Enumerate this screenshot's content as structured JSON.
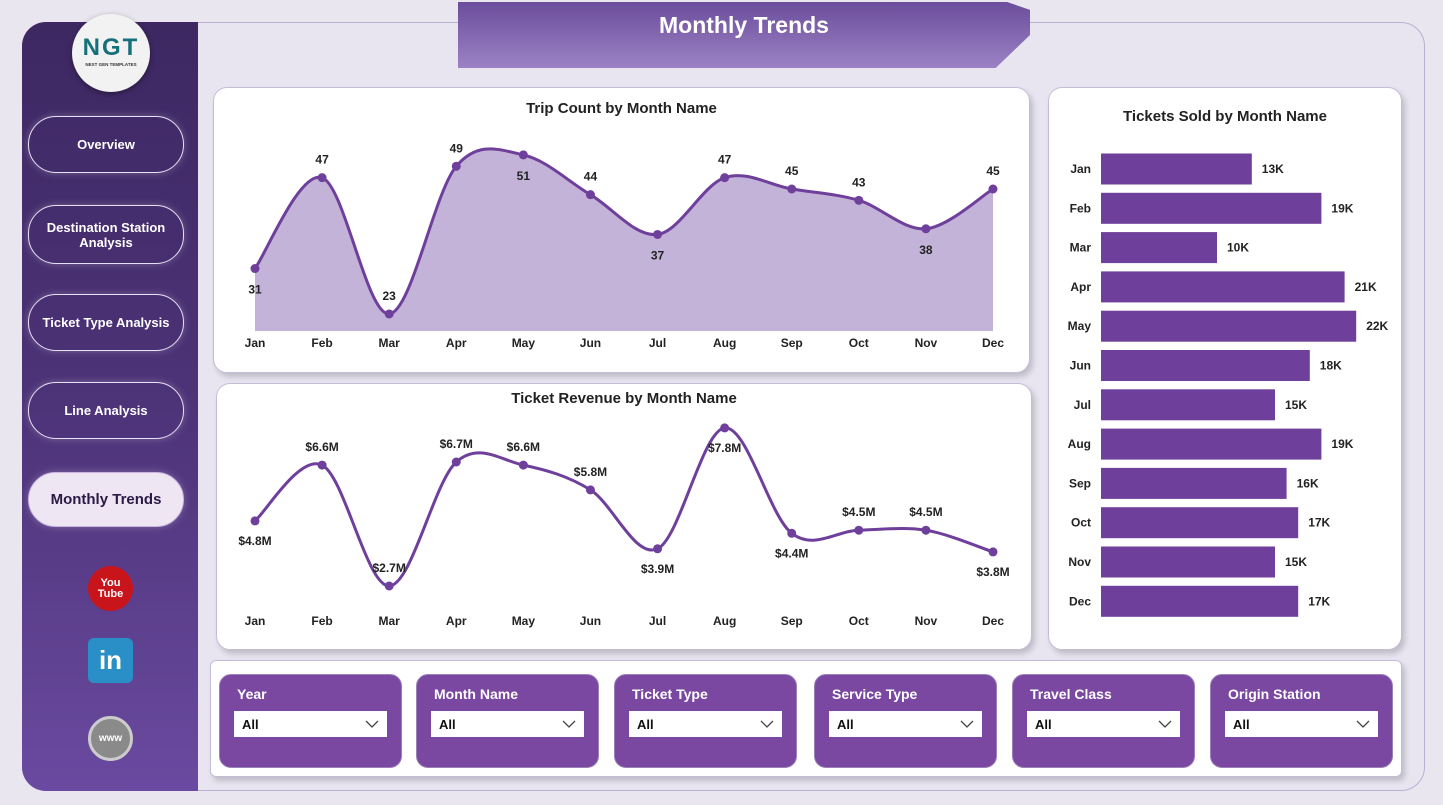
{
  "page_title": "Monthly Trends",
  "logo": {
    "text": "NGT",
    "subtitle": "NEXT GEN TEMPLATES"
  },
  "nav": [
    {
      "label": "Overview"
    },
    {
      "label": "Destination Station Analysis"
    },
    {
      "label": "Ticket Type Analysis"
    },
    {
      "label": "Line Analysis"
    },
    {
      "label": "Monthly Trends",
      "active": true
    }
  ],
  "social": [
    {
      "icon": "youtube-icon",
      "label": "You Tube"
    },
    {
      "icon": "linkedin-icon",
      "label": "in"
    },
    {
      "icon": "globe-icon",
      "label": "www"
    }
  ],
  "colors": {
    "accent": "#6e3f9b",
    "area_fill": "#c4b3d9",
    "sidebar": "#3d2862",
    "slicer": "#7a48a0"
  },
  "chart_data": [
    {
      "type": "area",
      "title": "Trip Count by Month Name",
      "categories": [
        "Jan",
        "Feb",
        "Mar",
        "Apr",
        "May",
        "Jun",
        "Jul",
        "Aug",
        "Sep",
        "Oct",
        "Nov",
        "Dec"
      ],
      "values": [
        31,
        47,
        23,
        49,
        51,
        44,
        37,
        47,
        45,
        43,
        38,
        45
      ],
      "labels": [
        "31",
        "47",
        "23",
        "49",
        "51",
        "44",
        "37",
        "47",
        "45",
        "43",
        "38",
        "45"
      ],
      "ylim": [
        20,
        51
      ]
    },
    {
      "type": "line",
      "title": "Ticket Revenue by Month Name",
      "categories": [
        "Jan",
        "Feb",
        "Mar",
        "Apr",
        "May",
        "Jun",
        "Jul",
        "Aug",
        "Sep",
        "Oct",
        "Nov",
        "Dec"
      ],
      "values": [
        4.8,
        6.6,
        2.7,
        6.7,
        6.6,
        5.8,
        3.9,
        7.8,
        4.4,
        4.5,
        4.5,
        3.8
      ],
      "labels": [
        "$4.8M",
        "$6.6M",
        "$2.7M",
        "$6.7M",
        "$6.6M",
        "$5.8M",
        "$3.9M",
        "$7.8M",
        "$4.4M",
        "$4.5M",
        "$4.5M",
        "$3.8M"
      ],
      "unit": "$M"
    },
    {
      "type": "bar",
      "orientation": "horizontal",
      "title": "Tickets Sold by Month Name",
      "categories": [
        "Jan",
        "Feb",
        "Mar",
        "Apr",
        "May",
        "Jun",
        "Jul",
        "Aug",
        "Sep",
        "Oct",
        "Nov",
        "Dec"
      ],
      "values": [
        13,
        19,
        10,
        21,
        22,
        18,
        15,
        19,
        16,
        17,
        15,
        17
      ],
      "labels": [
        "13K",
        "19K",
        "10K",
        "21K",
        "22K",
        "18K",
        "15K",
        "19K",
        "16K",
        "17K",
        "15K",
        "17K"
      ],
      "unit": "K"
    }
  ],
  "filters": [
    {
      "label": "Year",
      "value": "All"
    },
    {
      "label": "Month Name",
      "value": "All"
    },
    {
      "label": "Ticket Type",
      "value": "All"
    },
    {
      "label": "Service Type",
      "value": "All"
    },
    {
      "label": "Travel Class",
      "value": "All"
    },
    {
      "label": "Origin Station",
      "value": "All"
    }
  ]
}
